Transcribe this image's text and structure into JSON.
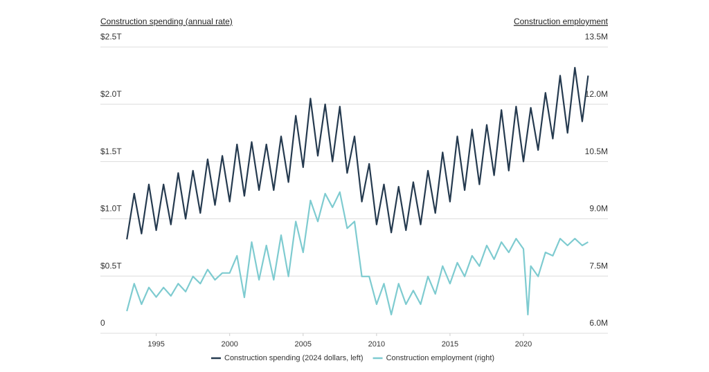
{
  "chart_data": {
    "type": "line",
    "y_label": "Construction spending (annual rate)",
    "y2_label": "Construction employment",
    "xlim": [
      1991.2,
      2025.75
    ],
    "xticks": [
      1995,
      2000,
      2005,
      2010,
      2015,
      2020
    ],
    "ylim": [
      0,
      2.5
    ],
    "yticks": [
      0,
      {
        "value": 0.5,
        "label": "$0.5T"
      },
      {
        "value": 1,
        "label": "$1.0T"
      },
      {
        "value": 1.5,
        "label": "$1.5T"
      },
      {
        "value": 2,
        "label": "$2.0T"
      },
      {
        "value": 2.5,
        "label": "$2.5T"
      }
    ],
    "y2lim": [
      6,
      13.5
    ],
    "y2ticks": [
      {
        "value": 6,
        "label": "6.0M"
      },
      {
        "value": 7.5,
        "label": "7.5M"
      },
      {
        "value": 9,
        "label": "9.0M"
      },
      {
        "value": 10.5,
        "label": "10.5M"
      },
      {
        "value": 12,
        "label": "12.0M"
      },
      {
        "value": 13.5,
        "label": "13.5M"
      }
    ],
    "grid": true,
    "legend": "bottom",
    "series": [
      {
        "name": "Construction spending (2024 dollars, left)",
        "color": "#253a4f",
        "x": [
          1993,
          1993.5,
          1994,
          1994.5,
          1995,
          1995.5,
          1996,
          1996.5,
          1997,
          1997.5,
          1998,
          1998.5,
          1999,
          1999.5,
          2000,
          2000.5,
          2001,
          2001.5,
          2002,
          2002.5,
          2003,
          2003.5,
          2004,
          2004.5,
          2005,
          2005.5,
          2006,
          2006.5,
          2007,
          2007.5,
          2008,
          2008.5,
          2009,
          2009.5,
          2010,
          2010.5,
          2011,
          2011.5,
          2012,
          2012.5,
          2013,
          2013.5,
          2014,
          2014.5,
          2015,
          2015.5,
          2016,
          2016.5,
          2017,
          2017.5,
          2018,
          2018.5,
          2019,
          2019.5,
          2020,
          2020.5,
          2021,
          2021.5,
          2022,
          2022.5,
          2023,
          2023.5,
          2024,
          2024.4
        ],
        "values": [
          0.82,
          1.22,
          0.87,
          1.3,
          0.9,
          1.3,
          0.95,
          1.4,
          1.0,
          1.42,
          1.05,
          1.52,
          1.12,
          1.55,
          1.15,
          1.65,
          1.2,
          1.67,
          1.25,
          1.65,
          1.25,
          1.72,
          1.32,
          1.9,
          1.45,
          2.05,
          1.55,
          2.0,
          1.5,
          1.98,
          1.4,
          1.72,
          1.15,
          1.48,
          0.95,
          1.3,
          0.88,
          1.28,
          0.9,
          1.32,
          0.95,
          1.42,
          1.05,
          1.58,
          1.15,
          1.72,
          1.25,
          1.78,
          1.3,
          1.82,
          1.38,
          1.95,
          1.42,
          1.98,
          1.5,
          1.97,
          1.6,
          2.1,
          1.7,
          2.25,
          1.75,
          2.32,
          1.85,
          2.25
        ]
      },
      {
        "name": "Construction employment (right)",
        "color": "#7ecbd0",
        "axis": "y2",
        "x": [
          1993,
          1993.5,
          1994,
          1994.5,
          1995,
          1995.5,
          1996,
          1996.5,
          1997,
          1997.5,
          1998,
          1998.5,
          1999,
          1999.5,
          2000,
          2000.5,
          2001,
          2001.5,
          2002,
          2002.5,
          2003,
          2003.5,
          2004,
          2004.5,
          2005,
          2005.5,
          2006,
          2006.5,
          2007,
          2007.5,
          2008,
          2008.5,
          2009,
          2009.5,
          2010,
          2010.5,
          2011,
          2011.5,
          2012,
          2012.5,
          2013,
          2013.5,
          2014,
          2014.5,
          2015,
          2015.5,
          2016,
          2016.5,
          2017,
          2017.5,
          2018,
          2018.5,
          2019,
          2019.5,
          2020,
          2020.3,
          2020.5,
          2021,
          2021.5,
          2022,
          2022.5,
          2023,
          2023.5,
          2024,
          2024.4
        ],
        "values": [
          6.58,
          7.3,
          6.76,
          7.2,
          6.95,
          7.2,
          6.98,
          7.3,
          7.09,
          7.49,
          7.3,
          7.67,
          7.4,
          7.58,
          7.58,
          8.03,
          6.94,
          8.39,
          7.4,
          8.3,
          7.4,
          8.57,
          7.49,
          8.93,
          8.12,
          9.48,
          8.93,
          9.66,
          9.3,
          9.7,
          8.75,
          8.93,
          7.49,
          7.49,
          6.76,
          7.3,
          6.49,
          7.3,
          6.76,
          7.12,
          6.76,
          7.49,
          7.03,
          7.76,
          7.3,
          7.85,
          7.49,
          8.03,
          7.76,
          8.3,
          7.94,
          8.39,
          8.12,
          8.48,
          8.21,
          6.49,
          7.76,
          7.49,
          8.12,
          8.03,
          8.48,
          8.3,
          8.48,
          8.3,
          8.39
        ]
      }
    ]
  }
}
